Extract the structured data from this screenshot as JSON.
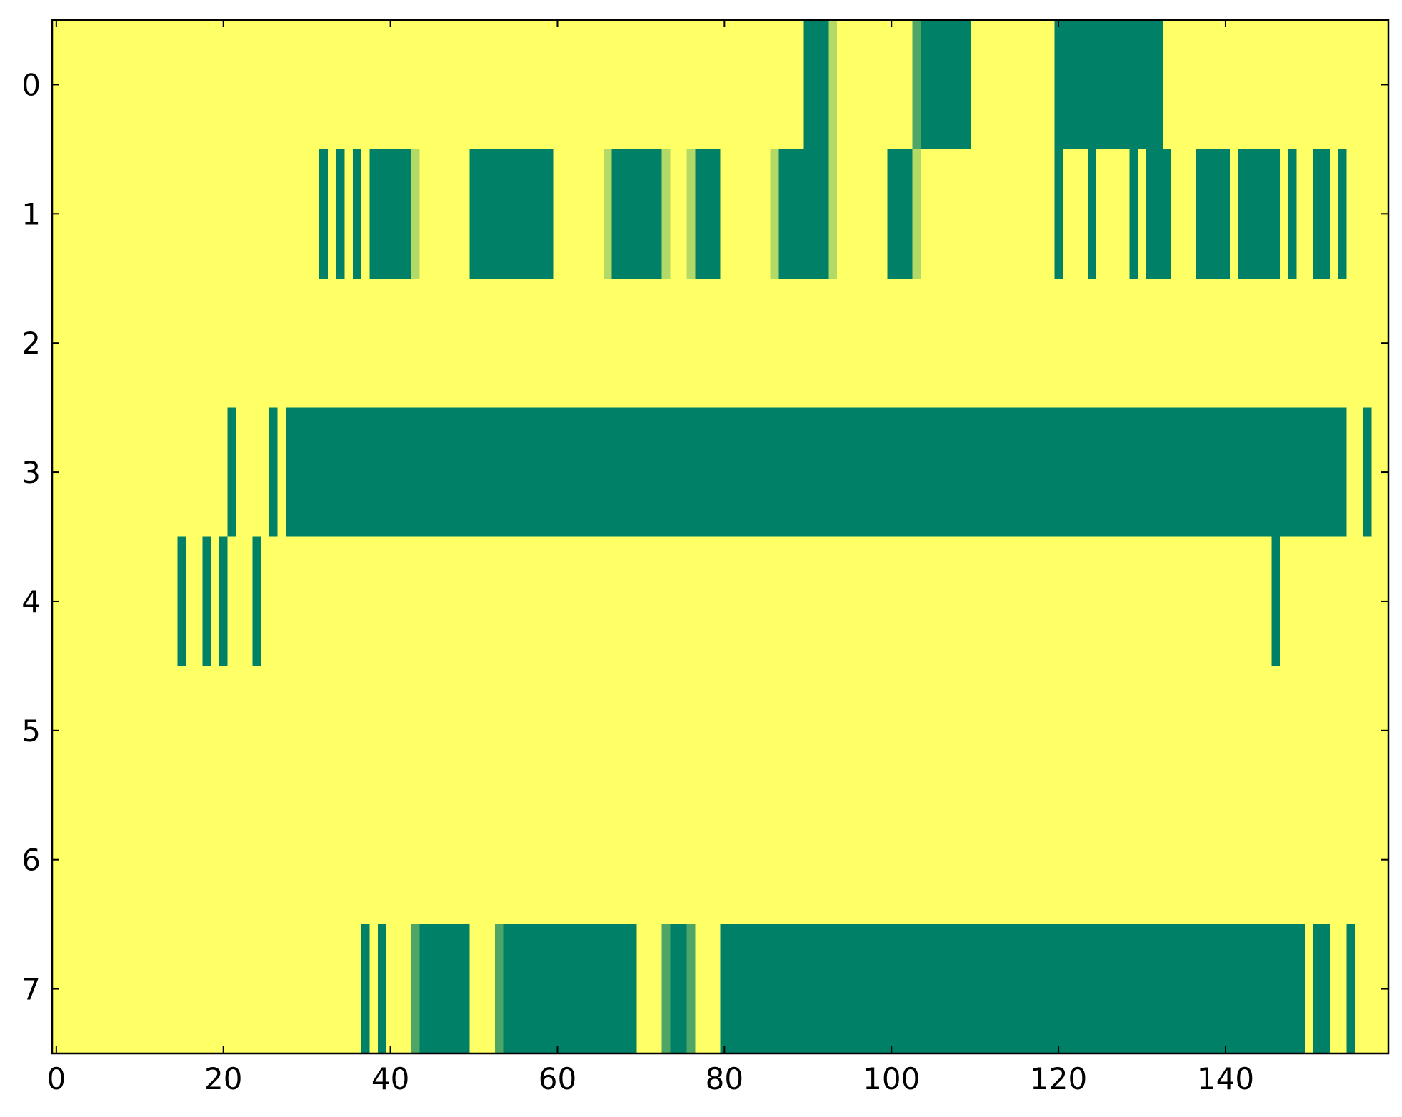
{
  "chart_data": {
    "type": "heatmap",
    "colormap": [
      "#008066",
      "#ffff66"
    ],
    "zlim": [
      0,
      1
    ],
    "xlim": [
      -0.5,
      159.5
    ],
    "ylim": [
      7.5,
      -0.5
    ],
    "xticks": [
      0,
      20,
      40,
      60,
      80,
      100,
      120,
      140
    ],
    "yticks": [
      0,
      1,
      2,
      3,
      4,
      5,
      6,
      7
    ],
    "z": [
      [
        1,
        1,
        1,
        1,
        1,
        1,
        1,
        1,
        1,
        1,
        1,
        1,
        1,
        1,
        1,
        1,
        1,
        1,
        1,
        1,
        1,
        1,
        1,
        1,
        1,
        1,
        1,
        1,
        1,
        1,
        1,
        1,
        1,
        1,
        1,
        1,
        1,
        1,
        1,
        1,
        1,
        1,
        1,
        1,
        1,
        1,
        1,
        1,
        1,
        1,
        1,
        1,
        1,
        1,
        1,
        1,
        1,
        1,
        1,
        1,
        1,
        1,
        1,
        1,
        1,
        1,
        1,
        1,
        1,
        1,
        1,
        1,
        1,
        1,
        1,
        1,
        1,
        1,
        1,
        1,
        1,
        1,
        1,
        1,
        1,
        1,
        1,
        1,
        1,
        1,
        0,
        0,
        0,
        0.7,
        1,
        1,
        1,
        1,
        1,
        1,
        1,
        1,
        1,
        0.3,
        0,
        0,
        0,
        0,
        0,
        0,
        1,
        1,
        1,
        1,
        1,
        1,
        1,
        1,
        1,
        1,
        0,
        0,
        0,
        0,
        0,
        0,
        0,
        0,
        0,
        0,
        0,
        0,
        0,
        1,
        1,
        1,
        1,
        1,
        1,
        1,
        1,
        1,
        1,
        1,
        1,
        1,
        1,
        1,
        1,
        1,
        1,
        1,
        1,
        1,
        1,
        1,
        1,
        1,
        1,
        1
      ],
      [
        1,
        1,
        1,
        1,
        1,
        1,
        1,
        1,
        1,
        1,
        1,
        1,
        1,
        1,
        1,
        1,
        1,
        1,
        1,
        1,
        1,
        1,
        1,
        1,
        1,
        1,
        1,
        1,
        1,
        1,
        1,
        1,
        0,
        1,
        0,
        1,
        0,
        1,
        0,
        0,
        0,
        0,
        0,
        0.7,
        1,
        1,
        1,
        1,
        1,
        1,
        0,
        0,
        0,
        0,
        0,
        0,
        0,
        0,
        0,
        0,
        1,
        1,
        1,
        1,
        1,
        1,
        0.7,
        0,
        0,
        0,
        0,
        0,
        0,
        0.7,
        1,
        1,
        0.7,
        0,
        0,
        0,
        1,
        1,
        1,
        1,
        1,
        1,
        0.7,
        0,
        0,
        0,
        0,
        0,
        0,
        0.7,
        1,
        1,
        1,
        1,
        1,
        1,
        0,
        0,
        0,
        0.7,
        1,
        1,
        1,
        1,
        1,
        1,
        1,
        1,
        1,
        1,
        1,
        1,
        1,
        1,
        1,
        1,
        0,
        1,
        1,
        1,
        0,
        1,
        1,
        1,
        1,
        0,
        1,
        0,
        0,
        0,
        1,
        1,
        1,
        0,
        0,
        0,
        0,
        1,
        0,
        0,
        0,
        0,
        0,
        1,
        0,
        1,
        1,
        0,
        0,
        1,
        0,
        1,
        1,
        1,
        1,
        1
      ],
      [
        1,
        1,
        1,
        1,
        1,
        1,
        1,
        1,
        1,
        1,
        1,
        1,
        1,
        1,
        1,
        1,
        1,
        1,
        1,
        1,
        1,
        1,
        1,
        1,
        1,
        1,
        1,
        1,
        1,
        1,
        1,
        1,
        1,
        1,
        1,
        1,
        1,
        1,
        1,
        1,
        1,
        1,
        1,
        1,
        1,
        1,
        1,
        1,
        1,
        1,
        1,
        1,
        1,
        1,
        1,
        1,
        1,
        1,
        1,
        1,
        1,
        1,
        1,
        1,
        1,
        1,
        1,
        1,
        1,
        1,
        1,
        1,
        1,
        1,
        1,
        1,
        1,
        1,
        1,
        1,
        1,
        1,
        1,
        1,
        1,
        1,
        1,
        1,
        1,
        1,
        1,
        1,
        1,
        1,
        1,
        1,
        1,
        1,
        1,
        1,
        1,
        1,
        1,
        1,
        1,
        1,
        1,
        1,
        1,
        1,
        1,
        1,
        1,
        1,
        1,
        1,
        1,
        1,
        1,
        1,
        1,
        1,
        1,
        1,
        1,
        1,
        1,
        1,
        1,
        1,
        1,
        1,
        1,
        1,
        1,
        1,
        1,
        1,
        1,
        1,
        1,
        1,
        1,
        1,
        1,
        1,
        1,
        1,
        1,
        1,
        1,
        1,
        1,
        1,
        1,
        1,
        1,
        1,
        1,
        1
      ],
      [
        1,
        1,
        1,
        1,
        1,
        1,
        1,
        1,
        1,
        1,
        1,
        1,
        1,
        1,
        1,
        1,
        1,
        1,
        1,
        1,
        1,
        0,
        1,
        1,
        1,
        1,
        0,
        1,
        0,
        0,
        0,
        0,
        0,
        0,
        0,
        0,
        0,
        0,
        0,
        0,
        0,
        0,
        0,
        0,
        0,
        0,
        0,
        0,
        0,
        0,
        0,
        0,
        0,
        0,
        0,
        0,
        0,
        0,
        0,
        0,
        0,
        0,
        0,
        0,
        0,
        0,
        0,
        0,
        0,
        0,
        0,
        0,
        0,
        0,
        0,
        0,
        0,
        0,
        0,
        0,
        0,
        0,
        0,
        0,
        0,
        0,
        0,
        0,
        0,
        0,
        0,
        0,
        0,
        0,
        0,
        0,
        0,
        0,
        0,
        0,
        0,
        0,
        0,
        0,
        0,
        0,
        0,
        0,
        0,
        0,
        0,
        0,
        0,
        0,
        0,
        0,
        0,
        0,
        0,
        0,
        0,
        0,
        0,
        0,
        0,
        0,
        0,
        0,
        0,
        0,
        0,
        0,
        0,
        0,
        0,
        0,
        0,
        0,
        0,
        0,
        0,
        0,
        0,
        0,
        0,
        0,
        0,
        0,
        0,
        0,
        0,
        0,
        0,
        0,
        0,
        1,
        1,
        0,
        1,
        1
      ],
      [
        1,
        1,
        1,
        1,
        1,
        1,
        1,
        1,
        1,
        1,
        1,
        1,
        1,
        1,
        1,
        0,
        1,
        1,
        0,
        1,
        0,
        1,
        1,
        1,
        0,
        1,
        1,
        1,
        1,
        1,
        1,
        1,
        1,
        1,
        1,
        1,
        1,
        1,
        1,
        1,
        1,
        1,
        1,
        1,
        1,
        1,
        1,
        1,
        1,
        1,
        1,
        1,
        1,
        1,
        1,
        1,
        1,
        1,
        1,
        1,
        1,
        1,
        1,
        1,
        1,
        1,
        1,
        1,
        1,
        1,
        1,
        1,
        1,
        1,
        1,
        1,
        1,
        1,
        1,
        1,
        1,
        1,
        1,
        1,
        1,
        1,
        1,
        1,
        1,
        1,
        1,
        1,
        1,
        1,
        1,
        1,
        1,
        1,
        1,
        1,
        1,
        1,
        1,
        1,
        1,
        1,
        1,
        1,
        1,
        1,
        1,
        1,
        1,
        1,
        1,
        1,
        1,
        1,
        1,
        1,
        1,
        1,
        1,
        1,
        1,
        1,
        1,
        1,
        1,
        1,
        1,
        1,
        1,
        1,
        1,
        1,
        1,
        1,
        1,
        1,
        1,
        1,
        1,
        1,
        1,
        1,
        0,
        1,
        1,
        1,
        1,
        1,
        1,
        1,
        1,
        1,
        1,
        1,
        1,
        1
      ],
      [
        1,
        1,
        1,
        1,
        1,
        1,
        1,
        1,
        1,
        1,
        1,
        1,
        1,
        1,
        1,
        1,
        1,
        1,
        1,
        1,
        1,
        1,
        1,
        1,
        1,
        1,
        1,
        1,
        1,
        1,
        1,
        1,
        1,
        1,
        1,
        1,
        1,
        1,
        1,
        1,
        1,
        1,
        1,
        1,
        1,
        1,
        1,
        1,
        1,
        1,
        1,
        1,
        1,
        1,
        1,
        1,
        1,
        1,
        1,
        1,
        1,
        1,
        1,
        1,
        1,
        1,
        1,
        1,
        1,
        1,
        1,
        1,
        1,
        1,
        1,
        1,
        1,
        1,
        1,
        1,
        1,
        1,
        1,
        1,
        1,
        1,
        1,
        1,
        1,
        1,
        1,
        1,
        1,
        1,
        1,
        1,
        1,
        1,
        1,
        1,
        1,
        1,
        1,
        1,
        1,
        1,
        1,
        1,
        1,
        1,
        1,
        1,
        1,
        1,
        1,
        1,
        1,
        1,
        1,
        1,
        1,
        1,
        1,
        1,
        1,
        1,
        1,
        1,
        1,
        1,
        1,
        1,
        1,
        1,
        1,
        1,
        1,
        1,
        1,
        1,
        1,
        1,
        1,
        1,
        1,
        1,
        1,
        1,
        1,
        1,
        1,
        1,
        1,
        1,
        1,
        1,
        1,
        1,
        1,
        1
      ],
      [
        1,
        1,
        1,
        1,
        1,
        1,
        1,
        1,
        1,
        1,
        1,
        1,
        1,
        1,
        1,
        1,
        1,
        1,
        1,
        1,
        1,
        1,
        1,
        1,
        1,
        1,
        1,
        1,
        1,
        1,
        1,
        1,
        1,
        1,
        1,
        1,
        1,
        1,
        1,
        1,
        1,
        1,
        1,
        1,
        1,
        1,
        1,
        1,
        1,
        1,
        1,
        1,
        1,
        1,
        1,
        1,
        1,
        1,
        1,
        1,
        1,
        1,
        1,
        1,
        1,
        1,
        1,
        1,
        1,
        1,
        1,
        1,
        1,
        1,
        1,
        1,
        1,
        1,
        1,
        1,
        1,
        1,
        1,
        1,
        1,
        1,
        1,
        1,
        1,
        1,
        1,
        1,
        1,
        1,
        1,
        1,
        1,
        1,
        1,
        1,
        1,
        1,
        1,
        1,
        1,
        1,
        1,
        1,
        1,
        1,
        1,
        1,
        1,
        1,
        1,
        1,
        1,
        1,
        1,
        1,
        1,
        1,
        1,
        1,
        1,
        1,
        1,
        1,
        1,
        1,
        1,
        1,
        1,
        1,
        1,
        1,
        1,
        1,
        1,
        1,
        1,
        1,
        1,
        1,
        1,
        1,
        1,
        1,
        1,
        1,
        1,
        1,
        1,
        1,
        1,
        1,
        1,
        1,
        1,
        1
      ],
      [
        1,
        1,
        1,
        1,
        1,
        1,
        1,
        1,
        1,
        1,
        1,
        1,
        1,
        1,
        1,
        1,
        1,
        1,
        1,
        1,
        1,
        1,
        1,
        1,
        1,
        1,
        1,
        1,
        1,
        1,
        1,
        1,
        1,
        1,
        1,
        1,
        1,
        0,
        1,
        0,
        1,
        1,
        1,
        0.3,
        0,
        0,
        0,
        0,
        0,
        0,
        1,
        1,
        1,
        0.3,
        0,
        0,
        0,
        0,
        0,
        0,
        0,
        0,
        0,
        0,
        0,
        0,
        0,
        0,
        0,
        0,
        1,
        1,
        1,
        0.3,
        0,
        0,
        0.3,
        1,
        1,
        1,
        0,
        0,
        0,
        0,
        0,
        0,
        0,
        0,
        0,
        0,
        0,
        0,
        0,
        0,
        0,
        0,
        0,
        0,
        0,
        0,
        0,
        0,
        0,
        0,
        0,
        0,
        0,
        0,
        0,
        0,
        0,
        0,
        0,
        0,
        0,
        0,
        0,
        0,
        0,
        0,
        0,
        0,
        0,
        0,
        0,
        0,
        0,
        0,
        0,
        0,
        0,
        0,
        0,
        0,
        0,
        0,
        0,
        0,
        0,
        0,
        0,
        0,
        0,
        0,
        0,
        0,
        0,
        0,
        0,
        0,
        1,
        0,
        0,
        1,
        1,
        0,
        1,
        1,
        1,
        1
      ]
    ]
  }
}
